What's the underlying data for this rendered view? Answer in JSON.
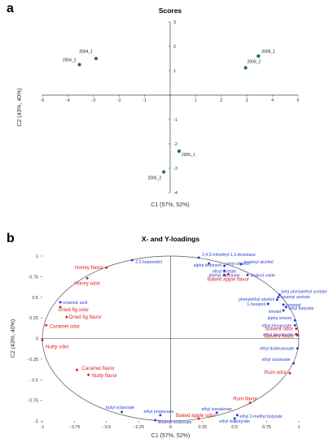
{
  "panel_a": {
    "letter": "a"
  },
  "panel_b": {
    "letter": "b"
  },
  "chart_data": [
    {
      "type": "scatter",
      "title": "Scores",
      "xlabel": "C1 (57%, 52%)",
      "ylabel": "C2 (43%, 40%)",
      "xlim": [
        -5,
        5
      ],
      "ylim": [
        -4,
        3
      ],
      "xticks": [
        -5,
        -4,
        -3,
        -2,
        -1,
        0,
        1,
        2,
        3,
        4,
        5
      ],
      "yticks": [
        -4,
        -3,
        -2,
        -1,
        0,
        1,
        2,
        3
      ],
      "grid": false,
      "marker_color": "#1e7a1e",
      "points": [
        {
          "label": "2004_1",
          "x": -2.9,
          "y": 1.5
        },
        {
          "label": "2004_2",
          "x": -3.55,
          "y": 1.25
        },
        {
          "label": "2006_1",
          "x": 3.45,
          "y": 1.6
        },
        {
          "label": "2006_2",
          "x": 2.95,
          "y": 1.12
        },
        {
          "label": "2005_1",
          "x": 0.35,
          "y": -2.3
        },
        {
          "label": "2005_2",
          "x": -0.25,
          "y": -3.15
        }
      ]
    },
    {
      "type": "scatter",
      "title": "X- and Y-loadings",
      "xlabel": "C1 (57%, 52%)",
      "ylabel": "C2 (43%, 40%)",
      "xlim": [
        -1,
        1
      ],
      "ylim": [
        -1,
        1
      ],
      "xticks": [
        -1,
        -0.75,
        -0.5,
        -0.25,
        0,
        0.25,
        0.5,
        0.75,
        1
      ],
      "xticklabels": [
        "-1",
        "- 0.75",
        "- 0.5",
        "- 0.25",
        "0",
        "0.25",
        "0.5",
        "0.75",
        "1"
      ],
      "yticks": [
        -1,
        -0.75,
        -0.5,
        -0.25,
        0,
        0.25,
        0.5,
        0.75,
        1
      ],
      "yticklabels": [
        "-1",
        "- 0.75",
        "- 0.5",
        "- 0.25",
        "0",
        "0.25",
        "0.5",
        "0.75",
        "1"
      ],
      "unit_circle": true,
      "grid": false,
      "series": [
        {
          "name": "",
          "color": "#2a3fd4",
          "points": [
            {
              "label": "2,4,5-trimethyl-1,3-dioxolane",
              "x": 0.22,
              "y": 0.98
            },
            {
              "label": "alpha terpineol",
              "x": 0.3,
              "y": 0.91
            },
            {
              "label": "amyl alcohol",
              "x": 0.42,
              "y": 0.88
            },
            {
              "label": "isoamyl alcohol",
              "x": 0.55,
              "y": 0.9
            },
            {
              "label": "ethyl acetate",
              "x": 0.42,
              "y": 0.82
            },
            {
              "label": "diethyl succinate",
              "x": 0.42,
              "y": 0.77
            },
            {
              "label": "linalool oxide",
              "x": 0.6,
              "y": 0.77
            },
            {
              "label": "beta phenylethyl acetate",
              "x": 0.85,
              "y": 0.53
            },
            {
              "label": "isoamyl acetate",
              "x": 0.84,
              "y": 0.5
            },
            {
              "label": "phenylethyl alcohol",
              "x": 0.83,
              "y": 0.47
            },
            {
              "label": "1-hexanol",
              "x": 0.76,
              "y": 0.42
            },
            {
              "label": "nonanal",
              "x": 0.88,
              "y": 0.41
            },
            {
              "label": "ethyl butyrate",
              "x": 0.9,
              "y": 0.38
            },
            {
              "label": "limetol",
              "x": 0.88,
              "y": 0.34
            },
            {
              "label": "alpha ionone",
              "x": 0.97,
              "y": 0.22
            },
            {
              "label": "ethyl hexanoate",
              "x": 0.97,
              "y": 0.16
            },
            {
              "label": "ethyl decanoate",
              "x": 0.98,
              "y": 0.05
            },
            {
              "label": "ethyl dodecanoate",
              "x": 0.99,
              "y": -0.12
            },
            {
              "label": "ethyl octanoate",
              "x": 0.96,
              "y": -0.3
            },
            {
              "label": "ethyl isovalerate",
              "x": 0.36,
              "y": -0.9
            },
            {
              "label": "ethyl 2-methyl butyrate",
              "x": 0.52,
              "y": -0.93
            },
            {
              "label": "ethyl isobutyrate",
              "x": 0.5,
              "y": -0.97
            },
            {
              "label": "ethyl propionate",
              "x": -0.08,
              "y": -0.93
            },
            {
              "label": "isoamyl octanoate",
              "x": -0.12,
              "y": -0.99
            },
            {
              "label": "butyl octanoate",
              "x": -0.38,
              "y": -0.89
            },
            {
              "label": "octanoic acid",
              "x": -0.86,
              "y": 0.44
            },
            {
              "label": "2,3 butanediol",
              "x": -0.3,
              "y": 0.95
            }
          ]
        },
        {
          "name": "",
          "color": "#e02020",
          "points": [
            {
              "label": "Honey flavor",
              "x": -0.5,
              "y": 0.86
            },
            {
              "label": "Honey odor",
              "x": -0.65,
              "y": 0.73
            },
            {
              "label": "Dried fig odor",
              "x": -0.86,
              "y": 0.38
            },
            {
              "label": "Dried fig flavor",
              "x": -0.81,
              "y": 0.26
            },
            {
              "label": "Caramel odor",
              "x": -0.97,
              "y": 0.16
            },
            {
              "label": "Nutty odor",
              "x": -1.0,
              "y": -0.02
            },
            {
              "label": "Caramel flavor",
              "x": -0.73,
              "y": -0.38
            },
            {
              "label": "Nutty flavor",
              "x": -0.64,
              "y": -0.44
            },
            {
              "label": "Baked apple flavor",
              "x": 0.45,
              "y": 0.78
            },
            {
              "label": "Solvent odor",
              "x": 0.98,
              "y": 0.12
            },
            {
              "label": "Solvent flavor",
              "x": 0.99,
              "y": 0.04
            },
            {
              "label": "Rum odor",
              "x": 0.93,
              "y": -0.42
            },
            {
              "label": "Rum flavor",
              "x": 0.62,
              "y": -0.78
            },
            {
              "label": "Baked apple odor",
              "x": 0.22,
              "y": -0.97
            }
          ]
        }
      ]
    }
  ]
}
